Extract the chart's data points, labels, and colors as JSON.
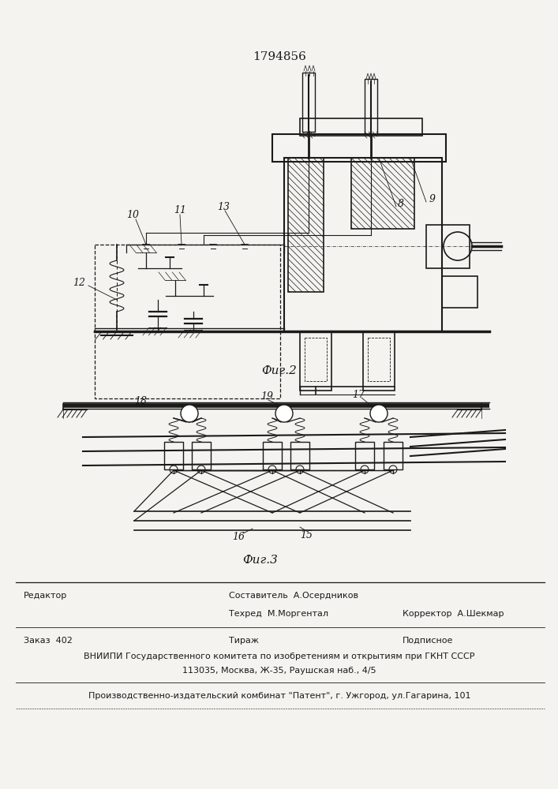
{
  "patent_number": "1794856",
  "bg_color": "#f5f3ef",
  "line_color": "#1a1a1a",
  "fig2_label": "Фиг.2",
  "fig3_label": "Фиг.3"
}
